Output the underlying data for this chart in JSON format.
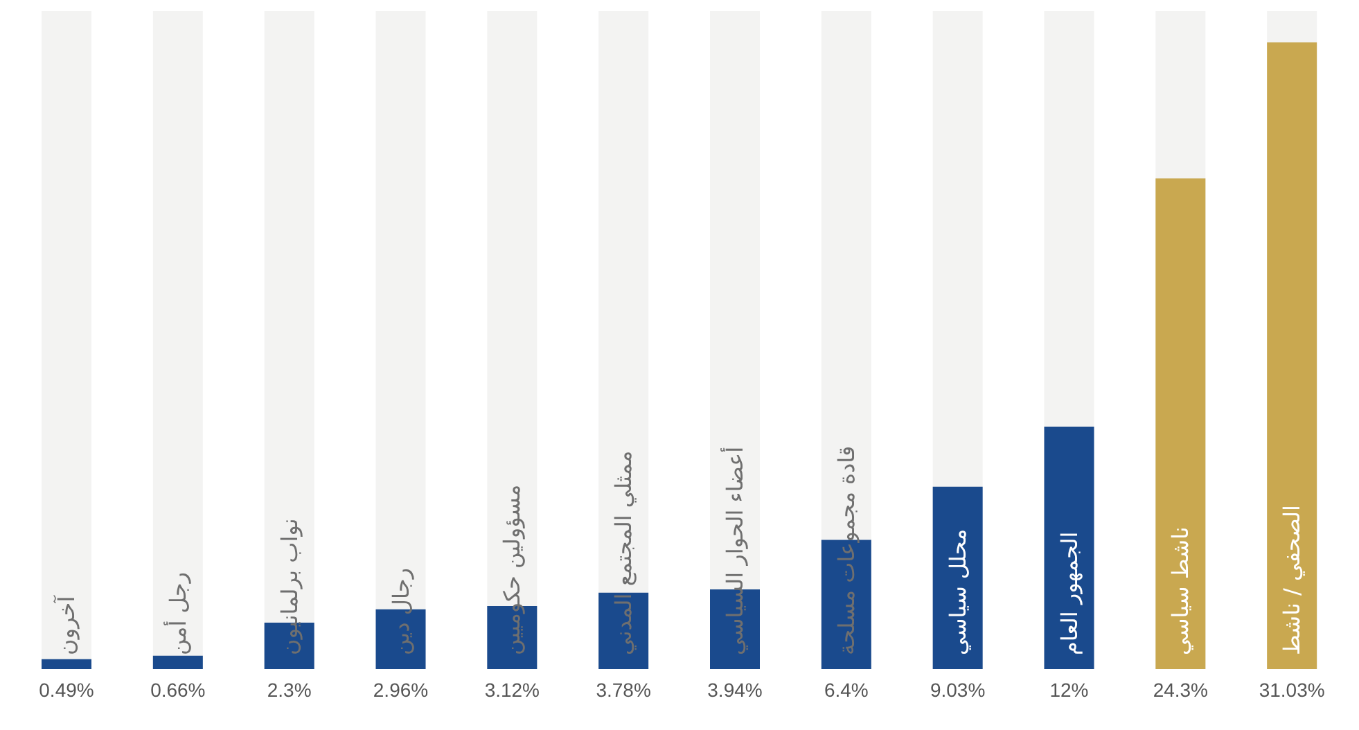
{
  "chart_data": {
    "type": "bar",
    "categories": [
      "آخرون",
      "رجل أمن",
      "نواب برلمانيون",
      "رجال دين",
      "مسؤولين حكوميين",
      "ممثلي المجتمع المدني",
      "أعضاء الحوار السياسي",
      "قادة مجموعات مسلحة",
      "محلل سياسي",
      "الجمهور العام",
      "ناشط سياسي",
      "الصحفي / ناشط"
    ],
    "values": [
      0.49,
      0.66,
      2.3,
      2.96,
      3.12,
      3.78,
      3.94,
      6.4,
      9.03,
      12,
      24.3,
      31.03
    ],
    "colors": [
      "#1a4a8d",
      "#1a4a8d",
      "#1a4a8d",
      "#1a4a8d",
      "#1a4a8d",
      "#1a4a8d",
      "#1a4a8d",
      "#1a4a8d",
      "#1a4a8d",
      "#1a4a8d",
      "#c9a850",
      "#c9a850"
    ],
    "value_labels": [
      "0.49%",
      "0.66%",
      "2.3%",
      "2.96%",
      "3.12%",
      "3.78%",
      "3.94%",
      "6.4%",
      "9.03%",
      "12%",
      "24.3%",
      "31.03%"
    ],
    "grid": false,
    "legend": false
  }
}
